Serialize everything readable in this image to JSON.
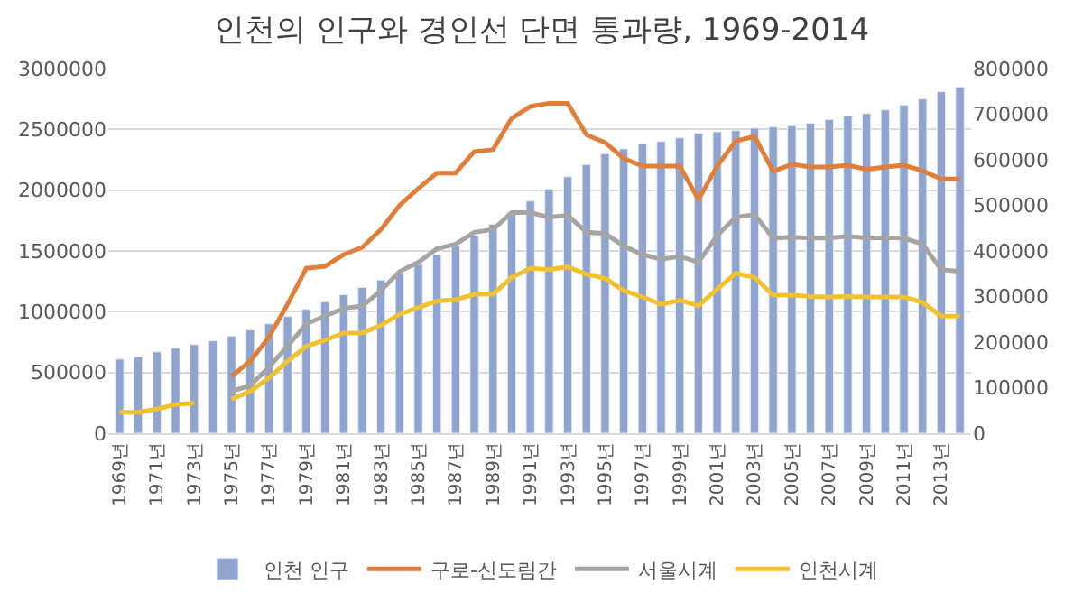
{
  "chart_data": {
    "type": "bar",
    "title": "인천의 인구와 경인선 단면 통과량, 1969-2014",
    "categories": [
      "1969년",
      null,
      "1971년",
      null,
      "1973년",
      null,
      "1975년",
      null,
      "1977년",
      null,
      "1979년",
      null,
      "1981년",
      null,
      "1983년",
      null,
      "1985년",
      null,
      "1987년",
      null,
      "1989년",
      null,
      "1991년",
      null,
      "1993년",
      null,
      "1995년",
      null,
      "1997년",
      null,
      "1999년",
      null,
      "2001년",
      null,
      "2003년",
      null,
      "2005년",
      null,
      "2007년",
      null,
      "2009년",
      null,
      "2011년",
      null,
      "2013년",
      null
    ],
    "series": [
      {
        "name": "인천 인구",
        "color": "#8fa5d0",
        "values": [
          610000,
          630000,
          670000,
          700000,
          730000,
          760000,
          800000,
          850000,
          900000,
          960000,
          1020000,
          1080000,
          1140000,
          1200000,
          1260000,
          1320000,
          1390000,
          1470000,
          1540000,
          1630000,
          1720000,
          1820000,
          1910000,
          2010000,
          2110000,
          2210000,
          2300000,
          2340000,
          2380000,
          2400000,
          2430000,
          2470000,
          2480000,
          2490000,
          2510000,
          2520000,
          2530000,
          2550000,
          2580000,
          2610000,
          2630000,
          2660000,
          2700000,
          2750000,
          2810000,
          2850000
        ]
      },
      {
        "name": "구로-신도림간",
        "type": "line",
        "axis": "y2",
        "color": "#e07f3c",
        "values": [
          null,
          null,
          null,
          null,
          null,
          null,
          125000,
          158000,
          211000,
          283000,
          362000,
          366000,
          392000,
          408000,
          447000,
          500000,
          537000,
          571000,
          571000,
          618000,
          622000,
          691000,
          717000,
          724000,
          724000,
          655000,
          638000,
          603000,
          586000,
          586000,
          586000,
          513000,
          586000,
          641000,
          651000,
          575000,
          590000,
          584000,
          584000,
          588000,
          579000,
          584000,
          588000,
          576000,
          558000,
          558000
        ]
      },
      {
        "name": "서울시계",
        "type": "line",
        "axis": "y2",
        "color": "#a5a5a5",
        "values": [
          null,
          null,
          null,
          null,
          null,
          null,
          92000,
          105000,
          145000,
          191000,
          240000,
          257000,
          274000,
          279000,
          313000,
          355000,
          375000,
          405000,
          415000,
          441000,
          447000,
          484000,
          484000,
          474000,
          478000,
          441000,
          438000,
          411000,
          392000,
          382000,
          388000,
          375000,
          434000,
          474000,
          480000,
          428000,
          430000,
          428000,
          428000,
          432000,
          428000,
          429000,
          428000,
          415000,
          359000,
          355000
        ]
      },
      {
        "name": "인천시계",
        "type": "line",
        "axis": "y2",
        "color": "#f2c12e",
        "values": [
          46000,
          46000,
          53000,
          63000,
          66000,
          null,
          75000,
          92000,
          121000,
          158000,
          191000,
          204000,
          220000,
          220000,
          237000,
          261000,
          276000,
          290000,
          293000,
          305000,
          305000,
          342000,
          362000,
          359000,
          365000,
          349000,
          340000,
          313000,
          299000,
          283000,
          292000,
          280000,
          316000,
          351000,
          342000,
          303000,
          303000,
          300000,
          299000,
          300000,
          299000,
          299000,
          299000,
          287000,
          257000,
          257000
        ]
      }
    ],
    "ylim": [
      0,
      3000000
    ],
    "yticks": [
      0,
      500000,
      1000000,
      1500000,
      2000000,
      2500000,
      3000000
    ],
    "y2lim": [
      0,
      800000
    ],
    "y2ticks": [
      0,
      100000,
      200000,
      300000,
      400000,
      500000,
      600000,
      700000,
      800000
    ],
    "grid": "y",
    "legend": "bottom",
    "line_style": "solid",
    "marker": "none"
  }
}
